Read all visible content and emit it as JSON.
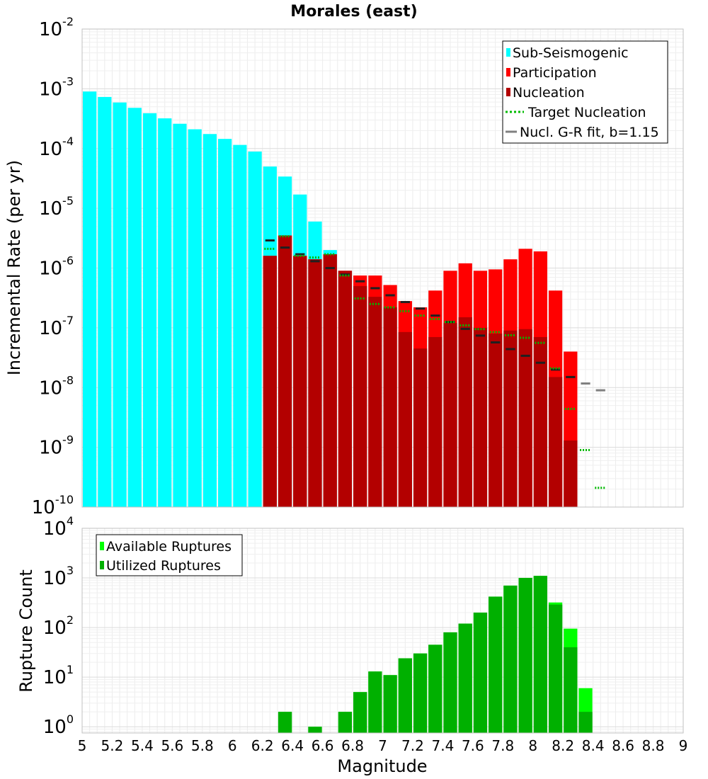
{
  "chart_data": [
    {
      "type": "bar",
      "title": "Morales (east)",
      "xlabel": "",
      "ylabel": "Incremental Rate (per yr)",
      "yscale": "log",
      "xlim": [
        5,
        9
      ],
      "ylim": [
        1e-10,
        0.01
      ],
      "grid": true,
      "legend_position": "top-right",
      "bin_width": 0.1,
      "series": [
        {
          "name": "Sub-Seismogenic",
          "color": "#00ffff",
          "style": "bar",
          "x": [
            5.05,
            5.15,
            5.25,
            5.35,
            5.45,
            5.55,
            5.65,
            5.75,
            5.85,
            5.95,
            6.05,
            6.15,
            6.25,
            6.35,
            6.45,
            6.55,
            6.65
          ],
          "values": [
            0.0009,
            0.00073,
            0.00059,
            0.00048,
            0.00039,
            0.00032,
            0.00026,
            0.00021,
            0.000175,
            0.000145,
            0.000115,
            8.9e-05,
            5e-05,
            3.4e-05,
            1.7e-05,
            6e-06,
            2e-06
          ]
        },
        {
          "name": "Participation",
          "color": "#ff0000",
          "style": "bar",
          "x": [
            6.25,
            6.35,
            6.45,
            6.55,
            6.65,
            6.75,
            6.85,
            6.95,
            7.05,
            7.15,
            7.25,
            7.35,
            7.45,
            7.55,
            7.65,
            7.75,
            7.85,
            7.95,
            8.05,
            8.15,
            8.25
          ],
          "values": [
            1.6e-06,
            3.5e-06,
            1.6e-06,
            1.4e-06,
            1.7e-06,
            9e-07,
            7.5e-07,
            7.5e-07,
            5.2e-07,
            2.8e-07,
            2.2e-07,
            4.2e-07,
            9e-07,
            1.2e-06,
            9e-07,
            9.5e-07,
            1.4e-06,
            2.1e-06,
            1.9e-06,
            4.2e-07,
            4e-08
          ]
        },
        {
          "name": "Nucleation",
          "color": "#b30000",
          "style": "bar",
          "x": [
            6.25,
            6.35,
            6.45,
            6.55,
            6.65,
            6.75,
            6.85,
            6.95,
            7.05,
            7.15,
            7.25,
            7.35,
            7.45,
            7.55,
            7.65,
            7.75,
            7.85,
            7.95,
            8.05,
            8.15,
            8.25
          ],
          "values": [
            1.6e-06,
            3.5e-06,
            1.6e-06,
            1.4e-06,
            1.7e-06,
            9e-07,
            5e-07,
            3.3e-07,
            2.2e-07,
            8.5e-08,
            4.5e-08,
            7e-08,
            1.2e-07,
            1.5e-07,
            1e-07,
            8e-08,
            9e-08,
            9.5e-08,
            7e-08,
            1.5e-08,
            1.3e-09
          ]
        },
        {
          "name": "Target Nucleation",
          "color": "#00bb00",
          "style": "dotted-segment",
          "x": [
            6.25,
            6.35,
            6.45,
            6.55,
            6.65,
            6.75,
            6.85,
            6.95,
            7.05,
            7.15,
            7.25,
            7.35,
            7.45,
            7.55,
            7.65,
            7.75,
            7.85,
            7.95,
            8.05,
            8.15,
            8.25,
            8.35,
            8.45
          ],
          "values": [
            2.1e-06,
            3.4e-06,
            1.6e-06,
            1.5e-06,
            1.7e-06,
            7.5e-07,
            3.1e-07,
            2.5e-07,
            2.2e-07,
            1.9e-07,
            1.6e-07,
            1.4e-07,
            1.25e-07,
            1.1e-07,
            9.5e-08,
            8.5e-08,
            7.5e-08,
            6.8e-08,
            5.6e-08,
            2.1e-08,
            4.4e-09,
            9e-10,
            2.1e-10
          ]
        },
        {
          "name": "Nucl. G-R fit, b=1.15",
          "color": "#808080",
          "style": "segment",
          "x": [
            6.25,
            6.35,
            6.45,
            6.55,
            6.65,
            6.75,
            6.85,
            6.95,
            7.05,
            7.15,
            7.25,
            7.35,
            7.45,
            7.55,
            7.65,
            7.75,
            7.85,
            7.95,
            8.05,
            8.15,
            8.25,
            8.35,
            8.45
          ],
          "values": [
            2.9e-06,
            2.2e-06,
            1.7e-06,
            1.3e-06,
            1e-06,
            7.8e-07,
            6e-07,
            4.6e-07,
            3.5e-07,
            2.7e-07,
            2.1e-07,
            1.6e-07,
            1.25e-07,
            9.6e-08,
            7.4e-08,
            5.7e-08,
            4.4e-08,
            3.4e-08,
            2.6e-08,
            2e-08,
            1.5e-08,
            1.17e-08,
            9e-09
          ]
        }
      ],
      "yticks": [
        {
          "base": "10",
          "exp": "-10"
        },
        {
          "base": "10",
          "exp": "-9"
        },
        {
          "base": "10",
          "exp": "-8"
        },
        {
          "base": "10",
          "exp": "-7"
        },
        {
          "base": "10",
          "exp": "-6"
        },
        {
          "base": "10",
          "exp": "-5"
        },
        {
          "base": "10",
          "exp": "-4"
        },
        {
          "base": "10",
          "exp": "-3"
        },
        {
          "base": "10",
          "exp": "-2"
        }
      ]
    },
    {
      "type": "bar",
      "title": "",
      "xlabel": "Magnitude",
      "ylabel": "Rupture Count",
      "yscale": "log",
      "xlim": [
        5,
        9
      ],
      "ylim": [
        0.75,
        10000
      ],
      "grid": true,
      "legend_position": "top-left",
      "bin_width": 0.1,
      "series": [
        {
          "name": "Available Ruptures",
          "color": "#00ff00",
          "x": [
            6.35,
            6.55,
            6.75,
            6.85,
            6.95,
            7.05,
            7.15,
            7.25,
            7.35,
            7.45,
            7.55,
            7.65,
            7.75,
            7.85,
            7.95,
            8.05,
            8.15,
            8.25,
            8.35
          ],
          "values": [
            2,
            1,
            2,
            5,
            13,
            11,
            24,
            30,
            45,
            80,
            120,
            200,
            420,
            700,
            1000,
            1100,
            320,
            95,
            6
          ]
        },
        {
          "name": "Utilized Ruptures",
          "color": "#00b000",
          "x": [
            6.35,
            6.55,
            6.75,
            6.85,
            6.95,
            7.05,
            7.15,
            7.25,
            7.35,
            7.45,
            7.55,
            7.65,
            7.75,
            7.85,
            7.95,
            8.05,
            8.15,
            8.25,
            8.35
          ],
          "values": [
            2,
            1,
            2,
            5,
            13,
            11,
            24,
            30,
            45,
            80,
            120,
            200,
            420,
            700,
            1000,
            1100,
            290,
            40,
            2
          ]
        }
      ],
      "yticks": [
        {
          "base": "10",
          "exp": "0"
        },
        {
          "base": "10",
          "exp": "1"
        },
        {
          "base": "10",
          "exp": "2"
        },
        {
          "base": "10",
          "exp": "3"
        },
        {
          "base": "10",
          "exp": "4"
        }
      ],
      "xticks": [
        "5",
        "5.2",
        "5.4",
        "5.6",
        "5.8",
        "6",
        "6.2",
        "6.4",
        "6.6",
        "6.8",
        "7",
        "7.2",
        "7.4",
        "7.6",
        "7.8",
        "8",
        "8.2",
        "8.4",
        "8.6",
        "8.8",
        "9"
      ]
    }
  ]
}
